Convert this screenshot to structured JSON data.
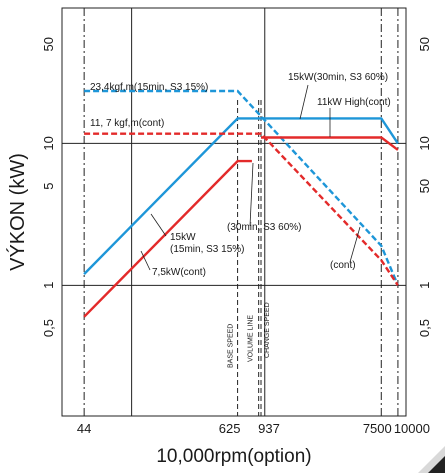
{
  "chart_data": {
    "type": "line",
    "xlabel": "10,000rpm(option)",
    "ylabel": "VÝKON (kW)",
    "xscale": "log",
    "yscale": "log",
    "xlim": [
      30,
      11500
    ],
    "ylim": [
      0.12,
      90
    ],
    "grid": true,
    "x_ticks": [
      {
        "value": 44,
        "label": "44"
      },
      {
        "value": 625,
        "label": "625"
      },
      {
        "value": 937,
        "label": "937"
      },
      {
        "value": 7500,
        "label": "7500"
      },
      {
        "value": 10000,
        "label": "10000"
      }
    ],
    "y_ticks_left": [
      {
        "value": 50,
        "label": "50"
      },
      {
        "value": 10,
        "label": "10"
      },
      {
        "value": 5,
        "label": "5"
      },
      {
        "value": 1,
        "label": "1"
      },
      {
        "value": 0.5,
        "label": "0,5"
      }
    ],
    "y_ticks_right": [
      {
        "value": 50,
        "label": "50"
      },
      {
        "value": 10,
        "label": "10"
      },
      {
        "value": 1,
        "label": "1"
      },
      {
        "value": 0.5,
        "label": "0,5"
      }
    ],
    "right_axis_extra": [
      {
        "value": 5,
        "label": "50"
      }
    ],
    "vertical_markers": [
      {
        "x": 625,
        "label": "BASE SPEED"
      },
      {
        "x": 900,
        "label": "VOLUME LINE"
      },
      {
        "x": 937,
        "label": "CHANGE SPEED"
      }
    ],
    "series": [
      {
        "color": "#1e96d8",
        "style": "solid",
        "points": [
          [
            44,
            1.2
          ],
          [
            625,
            15
          ],
          [
            7500,
            15
          ],
          [
            10000,
            10
          ]
        ]
      },
      {
        "color": "#1e96d8",
        "style": "dashed",
        "points": [
          [
            44,
            23.4
          ],
          [
            625,
            23.4
          ],
          [
            7500,
            1.9
          ],
          [
            10000,
            1
          ]
        ]
      },
      {
        "color": "#e32a2a",
        "style": "solid",
        "points": [
          [
            44,
            0.6
          ],
          [
            625,
            7.5
          ],
          [
            800,
            7.5
          ]
        ]
      },
      {
        "color": "#e32a2a",
        "style": "solid",
        "points": [
          [
            937,
            11
          ],
          [
            7500,
            11
          ],
          [
            10000,
            9
          ]
        ]
      },
      {
        "color": "#e32a2a",
        "style": "dashed",
        "points": [
          [
            44,
            11.7
          ],
          [
            937,
            11.7
          ],
          [
            7500,
            1.5
          ],
          [
            10000,
            1
          ]
        ]
      }
    ],
    "annotations": [
      {
        "text": "23,4kgf,m(15min, S3 15%)"
      },
      {
        "text": "11, 7 kgf,m(cont)"
      },
      {
        "text": "15kW(30min, S3 60%)"
      },
      {
        "text": "11kW High(cont)"
      },
      {
        "text": "15kW"
      },
      {
        "text": "(15min, S3 15%)"
      },
      {
        "text": "7,5kW(cont)"
      },
      {
        "text": "(30min, S3 60%)"
      },
      {
        "text": "(cont)"
      }
    ]
  }
}
